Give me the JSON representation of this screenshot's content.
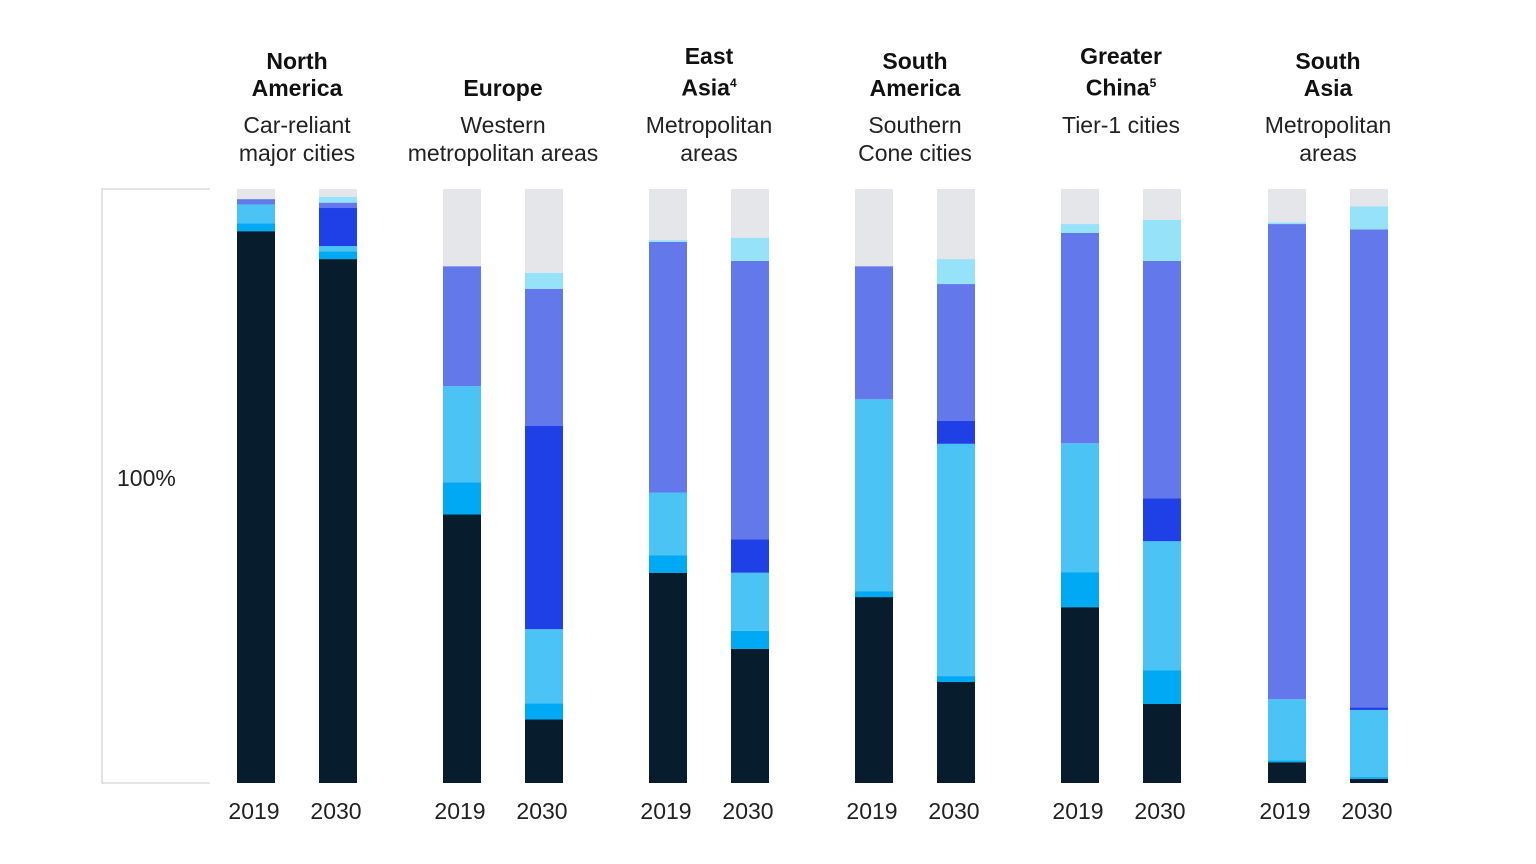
{
  "chart_data": {
    "type": "bar",
    "stacked": true,
    "normalized": true,
    "ylabel": "100%",
    "ylim": [
      0,
      100
    ],
    "grid": false,
    "segment_colors_bottom_to_top": [
      "#071c2c",
      "#00a9f4",
      "#4bc3f5",
      "#1f40e6",
      "#6378ea",
      "#96e2f8",
      "#e4e6e9"
    ],
    "groups": [
      {
        "title": [
          "North",
          "America"
        ],
        "sup": "",
        "subtitle": [
          "Car-reliant",
          "major cities"
        ],
        "bars": [
          {
            "year": "2019",
            "values": [
              92.9,
              1.3,
              3.2,
              0,
              0.9,
              0,
              1.7
            ]
          },
          {
            "year": "2030",
            "values": [
              88.2,
              1.3,
              0.9,
              6.4,
              0.9,
              1.0,
              1.3
            ]
          }
        ]
      },
      {
        "title": [
          "",
          "Europe"
        ],
        "sup": "",
        "subtitle": [
          "Western",
          "metropolitan areas"
        ],
        "bars": [
          {
            "year": "2019",
            "values": [
              45.2,
              5.4,
              16.2,
              0,
              20.2,
              0,
              13.0
            ]
          },
          {
            "year": "2030",
            "values": [
              10.7,
              2.7,
              12.5,
              34.2,
              23.1,
              2.7,
              14.1
            ]
          }
        ]
      },
      {
        "title": [
          "East",
          "Asia"
        ],
        "sup": "4",
        "subtitle": [
          "Metropolitan",
          "areas"
        ],
        "bars": [
          {
            "year": "2019",
            "values": [
              35.4,
              2.9,
              10.6,
              0,
              42.2,
              0.3,
              8.6
            ]
          },
          {
            "year": "2030",
            "values": [
              22.6,
              3.0,
              9.8,
              5.6,
              46.9,
              3.9,
              8.2
            ]
          }
        ]
      },
      {
        "title": [
          "South",
          "America"
        ],
        "sup": "",
        "subtitle": [
          "Southern",
          "Cone cities"
        ],
        "bars": [
          {
            "year": "2019",
            "values": [
              31.3,
              1.0,
              32.3,
              0,
              22.4,
              0,
              13.0
            ]
          },
          {
            "year": "2030",
            "values": [
              17.0,
              1.0,
              39.1,
              3.9,
              23.0,
              4.2,
              11.8
            ]
          }
        ]
      },
      {
        "title": [
          "Greater",
          "China"
        ],
        "sup": "5",
        "subtitle": [
          "Tier-1 cities",
          ""
        ],
        "bars": [
          {
            "year": "2019",
            "values": [
              29.6,
              5.9,
              21.7,
              0,
              35.4,
              1.5,
              5.9
            ]
          },
          {
            "year": "2030",
            "values": [
              13.3,
              5.7,
              21.7,
              7.2,
              40.0,
              6.9,
              5.2
            ]
          }
        ]
      },
      {
        "title": [
          "South",
          "Asia"
        ],
        "sup": "",
        "subtitle": [
          "Metropolitan",
          "areas"
        ],
        "bars": [
          {
            "year": "2019",
            "values": [
              3.5,
              0.3,
              10.3,
              0,
              80.0,
              0.3,
              5.6
            ]
          },
          {
            "year": "2030",
            "values": [
              0.7,
              0.3,
              11.3,
              0.4,
              80.5,
              3.9,
              2.9
            ]
          }
        ]
      }
    ]
  }
}
